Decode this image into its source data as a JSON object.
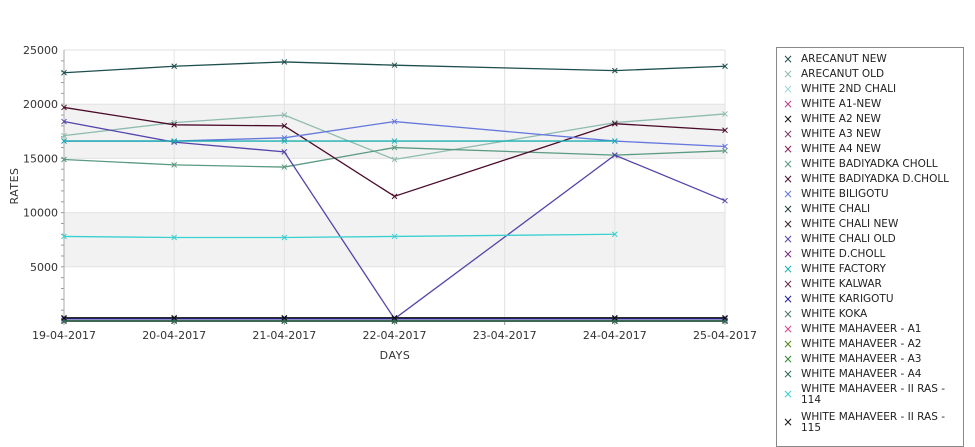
{
  "chart_data": {
    "type": "line",
    "xlabel": "DAYS",
    "ylabel": "RATES",
    "x": [
      "19-04-2017",
      "20-04-2017",
      "21-04-2017",
      "22-04-2017",
      "23-04-2017",
      "24-04-2017",
      "25-04-2017"
    ],
    "yticks": [
      "25000",
      "20000",
      "15000",
      "10000",
      "5000"
    ],
    "ylim": [
      0,
      25000
    ],
    "grid": true,
    "legend_position": "right",
    "series": [
      {
        "name": "ARECANUT NEW",
        "color": "#1e4e4e",
        "points": [
          [
            0,
            22900
          ],
          [
            1,
            23500
          ],
          [
            2,
            23900
          ],
          [
            3,
            23600
          ],
          [
            5,
            23100
          ],
          [
            6,
            23500
          ]
        ]
      },
      {
        "name": "ARECANUT OLD",
        "color": "#8fbcb0",
        "points": [
          [
            0,
            17100
          ],
          [
            1,
            18300
          ],
          [
            2,
            19000
          ],
          [
            3,
            14900
          ],
          [
            5,
            18300
          ],
          [
            6,
            19100
          ]
        ]
      },
      {
        "name": "WHITE 2ND CHALI",
        "color": "#9ad8d8",
        "points": [
          [
            0,
            0
          ],
          [
            1,
            0
          ],
          [
            2,
            0
          ],
          [
            3,
            0
          ],
          [
            5,
            0
          ],
          [
            6,
            0
          ]
        ]
      },
      {
        "name": "WHITE A1-NEW",
        "color": "#c0388e",
        "points": [
          [
            0,
            0
          ],
          [
            1,
            0
          ],
          [
            2,
            0
          ],
          [
            3,
            0
          ],
          [
            5,
            0
          ],
          [
            6,
            0
          ]
        ]
      },
      {
        "name": "WHITE A2 NEW",
        "color": "#111111",
        "points": [
          [
            0,
            0
          ],
          [
            1,
            0
          ],
          [
            2,
            0
          ],
          [
            3,
            0
          ],
          [
            5,
            0
          ],
          [
            6,
            0
          ]
        ]
      },
      {
        "name": "WHITE A3 NEW",
        "color": "#7a3a6a",
        "points": [
          [
            0,
            0
          ],
          [
            1,
            0
          ],
          [
            2,
            0
          ],
          [
            3,
            0
          ],
          [
            5,
            0
          ],
          [
            6,
            0
          ]
        ]
      },
      {
        "name": "WHITE A4 NEW",
        "color": "#8a1e5a",
        "points": [
          [
            0,
            0
          ],
          [
            1,
            0
          ],
          [
            2,
            0
          ],
          [
            3,
            0
          ],
          [
            5,
            0
          ],
          [
            6,
            0
          ]
        ]
      },
      {
        "name": "WHITE BADIYADKA CHOLL",
        "color": "#5a9a80",
        "points": [
          [
            0,
            14900
          ],
          [
            1,
            14400
          ],
          [
            2,
            14200
          ],
          [
            3,
            16000
          ],
          [
            5,
            15300
          ],
          [
            6,
            15700
          ]
        ]
      },
      {
        "name": "WHITE BADIYADKA D.CHOLL",
        "color": "#4a0a2a",
        "points": [
          [
            0,
            19700
          ],
          [
            1,
            18100
          ],
          [
            2,
            18000
          ],
          [
            3,
            11500
          ],
          [
            5,
            18200
          ],
          [
            6,
            17600
          ]
        ]
      },
      {
        "name": "WHITE BILIGOTU",
        "color": "#6677dd",
        "points": [
          [
            0,
            16600
          ],
          [
            1,
            16600
          ],
          [
            2,
            16900
          ],
          [
            3,
            18400
          ],
          [
            5,
            16600
          ],
          [
            6,
            16100
          ]
        ]
      },
      {
        "name": "WHITE CHALI",
        "color": "#1e3e3e",
        "points": [
          [
            0,
            0
          ],
          [
            1,
            0
          ],
          [
            2,
            0
          ],
          [
            3,
            0
          ],
          [
            5,
            0
          ],
          [
            6,
            0
          ]
        ]
      },
      {
        "name": "WHITE CHALI NEW",
        "color": "#3a1a2a",
        "points": [
          [
            0,
            0
          ],
          [
            1,
            0
          ],
          [
            2,
            0
          ],
          [
            3,
            0
          ],
          [
            5,
            0
          ],
          [
            6,
            0
          ]
        ]
      },
      {
        "name": "WHITE CHALI OLD",
        "color": "#5544aa",
        "points": [
          [
            0,
            18400
          ],
          [
            1,
            16500
          ],
          [
            2,
            15600
          ],
          [
            3,
            200
          ],
          [
            5,
            15300
          ],
          [
            6,
            11100
          ]
        ]
      },
      {
        "name": "WHITE D.CHOLL",
        "color": "#7a2a7a",
        "points": [
          [
            0,
            0
          ],
          [
            1,
            0
          ],
          [
            2,
            0
          ],
          [
            3,
            0
          ],
          [
            5,
            0
          ],
          [
            6,
            0
          ]
        ]
      },
      {
        "name": "WHITE FACTORY",
        "color": "#1ab0b0",
        "points": [
          [
            0,
            16600
          ],
          [
            1,
            16600
          ],
          [
            2,
            16600
          ],
          [
            3,
            16600
          ],
          [
            5,
            16600
          ]
        ]
      },
      {
        "name": "WHITE KALWAR",
        "color": "#6a2a4a",
        "points": [
          [
            0,
            0
          ],
          [
            1,
            0
          ],
          [
            2,
            0
          ],
          [
            3,
            0
          ],
          [
            5,
            0
          ],
          [
            6,
            0
          ]
        ]
      },
      {
        "name": "WHITE KARIGOTU",
        "color": "#1a1a9a",
        "points": [
          [
            0,
            200
          ],
          [
            1,
            200
          ],
          [
            2,
            200
          ],
          [
            3,
            200
          ],
          [
            5,
            200
          ],
          [
            6,
            200
          ]
        ]
      },
      {
        "name": "WHITE KOKA",
        "color": "#4a7a6a",
        "points": [
          [
            0,
            0
          ],
          [
            1,
            0
          ],
          [
            2,
            0
          ],
          [
            3,
            0
          ],
          [
            5,
            0
          ],
          [
            6,
            0
          ]
        ]
      },
      {
        "name": "WHITE MAHAVEER - A1",
        "color": "#e0408e",
        "points": [
          [
            0,
            0
          ],
          [
            1,
            0
          ],
          [
            2,
            0
          ],
          [
            3,
            0
          ],
          [
            5,
            0
          ],
          [
            6,
            0
          ]
        ]
      },
      {
        "name": "WHITE MAHAVEER - A2",
        "color": "#4a8a1a",
        "points": [
          [
            0,
            0
          ],
          [
            1,
            0
          ],
          [
            2,
            0
          ],
          [
            3,
            0
          ],
          [
            5,
            0
          ],
          [
            6,
            0
          ]
        ]
      },
      {
        "name": "WHITE MAHAVEER - A3",
        "color": "#2a8a2a",
        "points": [
          [
            0,
            0
          ],
          [
            1,
            0
          ],
          [
            2,
            0
          ],
          [
            3,
            0
          ],
          [
            5,
            0
          ],
          [
            6,
            0
          ]
        ]
      },
      {
        "name": "WHITE MAHAVEER - A4",
        "color": "#2a6a5a",
        "points": [
          [
            0,
            0
          ],
          [
            1,
            0
          ],
          [
            2,
            0
          ],
          [
            3,
            0
          ],
          [
            5,
            0
          ],
          [
            6,
            0
          ]
        ]
      },
      {
        "name": "WHITE MAHAVEER - II RAS - 114",
        "color": "#3ad0d0",
        "points": [
          [
            0,
            7800
          ],
          [
            1,
            7700
          ],
          [
            2,
            7700
          ],
          [
            3,
            7800
          ],
          [
            5,
            8000
          ]
        ]
      },
      {
        "name": "WHITE MAHAVEER - II RAS - 115",
        "color": "#111111",
        "points": [
          [
            0,
            300
          ],
          [
            1,
            300
          ],
          [
            2,
            300
          ],
          [
            3,
            300
          ],
          [
            5,
            300
          ],
          [
            6,
            300
          ]
        ]
      }
    ]
  }
}
